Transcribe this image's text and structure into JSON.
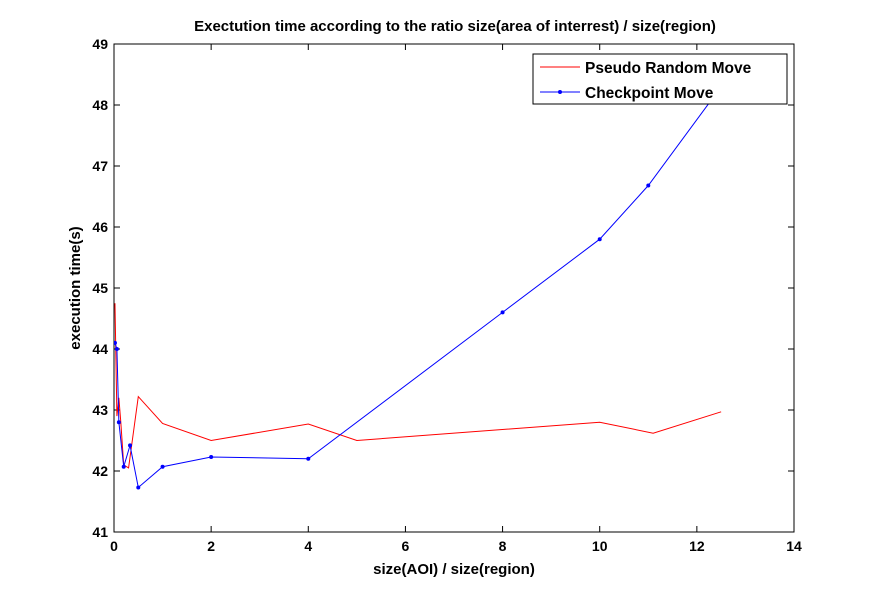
{
  "chart_data": {
    "type": "line",
    "title": "Exectution time according to the ratio size(area of interrest) / size(region)",
    "xlabel": "size(AOI) / size(region)",
    "ylabel": "execution time(s)",
    "xlim": [
      0,
      14
    ],
    "ylim": [
      41,
      49
    ],
    "xticks": [
      0,
      2,
      4,
      6,
      8,
      10,
      12,
      14
    ],
    "yticks": [
      41,
      42,
      43,
      44,
      45,
      46,
      47,
      48,
      49
    ],
    "grid": false,
    "legend_position": "top-right",
    "series": [
      {
        "name": "Pseudo Random Move",
        "color": "#ff0000",
        "marker": "none",
        "x": [
          0.02,
          0.06,
          0.1,
          0.14,
          0.2,
          0.3,
          0.5,
          1.0,
          2.0,
          4.0,
          5.0,
          10.0,
          11.1,
          12.5
        ],
        "y": [
          44.75,
          42.9,
          43.2,
          42.8,
          42.1,
          42.05,
          43.22,
          42.78,
          42.5,
          42.77,
          42.5,
          42.8,
          42.62,
          42.97
        ]
      },
      {
        "name": "Checkpoint Move",
        "color": "#0000ff",
        "marker": "dot",
        "x": [
          0.02,
          0.06,
          0.1,
          0.2,
          0.33,
          0.5,
          1.0,
          2.0,
          4.0,
          8.0,
          10.0,
          11.0,
          12.5
        ],
        "y": [
          44.1,
          44.0,
          42.8,
          42.07,
          42.42,
          41.73,
          42.07,
          42.23,
          42.2,
          44.6,
          45.8,
          46.68,
          48.3
        ]
      }
    ]
  }
}
